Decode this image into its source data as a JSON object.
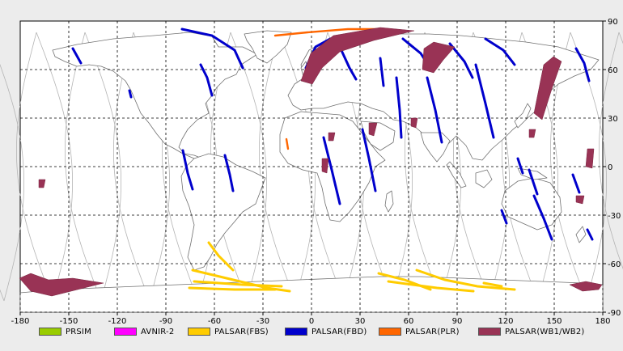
{
  "map": {
    "lon_ticks": [
      "-180",
      "-150",
      "-120",
      "-90",
      "-60",
      "-30",
      "0",
      "30",
      "60",
      "90",
      "120",
      "150",
      "180"
    ],
    "lat_ticks": [
      "90",
      "60",
      "30",
      "0",
      "-30",
      "-60",
      "-90"
    ],
    "lon_range": [
      -180,
      180
    ],
    "lat_range": [
      -90,
      90
    ],
    "projection": "equirectangular",
    "grid": "dashed"
  },
  "legend": {
    "items": [
      {
        "label": "PRSIM",
        "color": "#99cc00"
      },
      {
        "label": "AVNIR-2",
        "color": "#ff00ff"
      },
      {
        "label": "PALSAR(FBS)",
        "color": "#ffcc00"
      },
      {
        "label": "PALSAR(FBD)",
        "color": "#0000cc"
      },
      {
        "label": "PALSAR(PLR)",
        "color": "#ff6600"
      },
      {
        "label": "PALSAR(WB1/WB2)",
        "color": "#993355"
      }
    ]
  },
  "colors": {
    "land_outline": "#707070",
    "orbit_track": "#b4b4b4",
    "grid": "#000000",
    "background": "#ffffff"
  }
}
